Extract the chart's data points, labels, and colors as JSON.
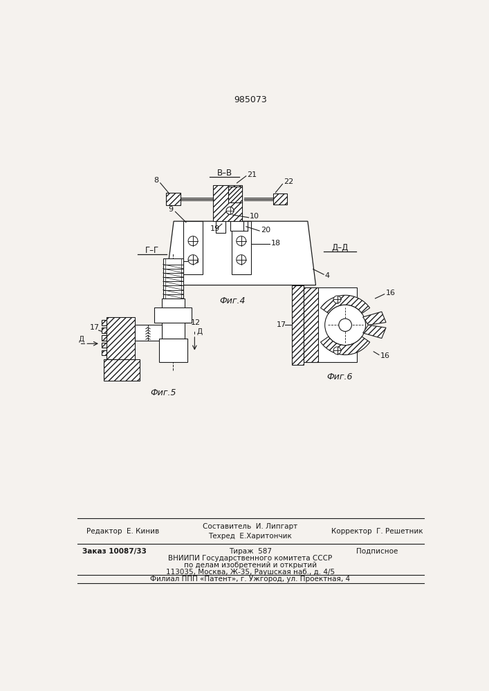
{
  "patent_number": "985073",
  "fig4_label": "Фиг.4",
  "fig5_label": "Фиг.5",
  "fig6_label": "Фиг.6",
  "section_BB": "В–В",
  "section_GG": "Г–Г",
  "section_DD": "Д–Д",
  "editor_line": "Редактор  Е. Кинив",
  "composer_line": "Составитель  И. Липгарт",
  "techred_line": "Техред  Е.Харитончик",
  "corrector_line": "Корректор  Г. Решетник",
  "order_line": "Заказ 10087/33",
  "tirage_line": "Тираж  587",
  "podpisnoe": "Подписное",
  "vniiipi_line1": "ВНИИПИ Государственного комитета СССР",
  "vniiipi_line2": "по делам изобретений и открытий",
  "vniiipi_line3": "113035, Москва, Ж-35, Раушская наб., д. 4/5",
  "filial_line": "Филиал ППП «Патент», г. Ужгород, ул. Проектная, 4",
  "bg_color": "#f5f2ee",
  "line_color": "#1a1a1a"
}
